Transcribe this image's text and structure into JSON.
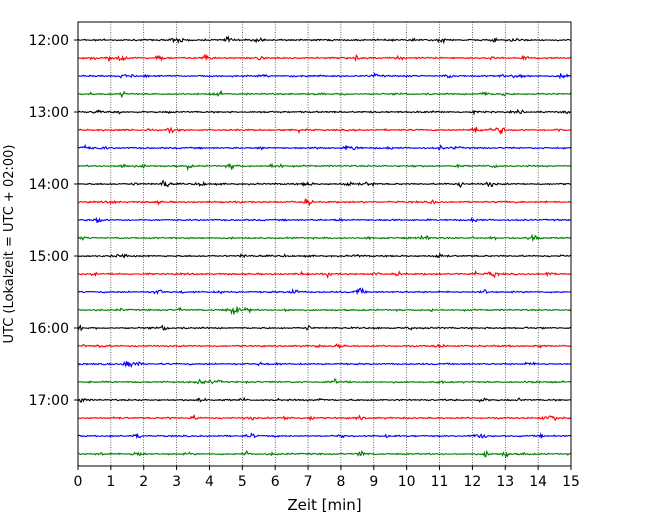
{
  "chart_data": {
    "type": "line",
    "title": "",
    "xlabel": "Zeit  [min]",
    "ylabel": "UTC (Lokalzeit = UTC + 02:00)",
    "xlim": [
      0,
      15
    ],
    "x_ticks": [
      "0",
      "1",
      "2",
      "3",
      "4",
      "5",
      "6",
      "7",
      "8",
      "9",
      "10",
      "11",
      "12",
      "13",
      "14",
      "15"
    ],
    "y_ticks": [
      "12:00",
      "13:00",
      "14:00",
      "15:00",
      "16:00",
      "17:00"
    ],
    "grid": "vertical dotted",
    "row_interval_minutes": 15,
    "row_start": "12:00",
    "rows": [
      {
        "time": "12:00",
        "color": "#000000"
      },
      {
        "time": "12:15",
        "color": "#ff0000"
      },
      {
        "time": "12:30",
        "color": "#0000ff"
      },
      {
        "time": "12:45",
        "color": "#008000"
      },
      {
        "time": "13:00",
        "color": "#000000"
      },
      {
        "time": "13:15",
        "color": "#ff0000"
      },
      {
        "time": "13:30",
        "color": "#0000ff"
      },
      {
        "time": "13:45",
        "color": "#008000"
      },
      {
        "time": "14:00",
        "color": "#000000"
      },
      {
        "time": "14:15",
        "color": "#ff0000"
      },
      {
        "time": "14:30",
        "color": "#0000ff"
      },
      {
        "time": "14:45",
        "color": "#008000"
      },
      {
        "time": "15:00",
        "color": "#000000"
      },
      {
        "time": "15:15",
        "color": "#ff0000"
      },
      {
        "time": "15:30",
        "color": "#0000ff"
      },
      {
        "time": "15:45",
        "color": "#008000"
      },
      {
        "time": "16:00",
        "color": "#000000"
      },
      {
        "time": "16:15",
        "color": "#ff0000"
      },
      {
        "time": "16:30",
        "color": "#0000ff"
      },
      {
        "time": "16:45",
        "color": "#008000"
      },
      {
        "time": "17:00",
        "color": "#000000"
      },
      {
        "time": "17:15",
        "color": "#ff0000"
      },
      {
        "time": "17:30",
        "color": "#0000ff"
      },
      {
        "time": "17:45",
        "color": "#008000"
      }
    ]
  }
}
